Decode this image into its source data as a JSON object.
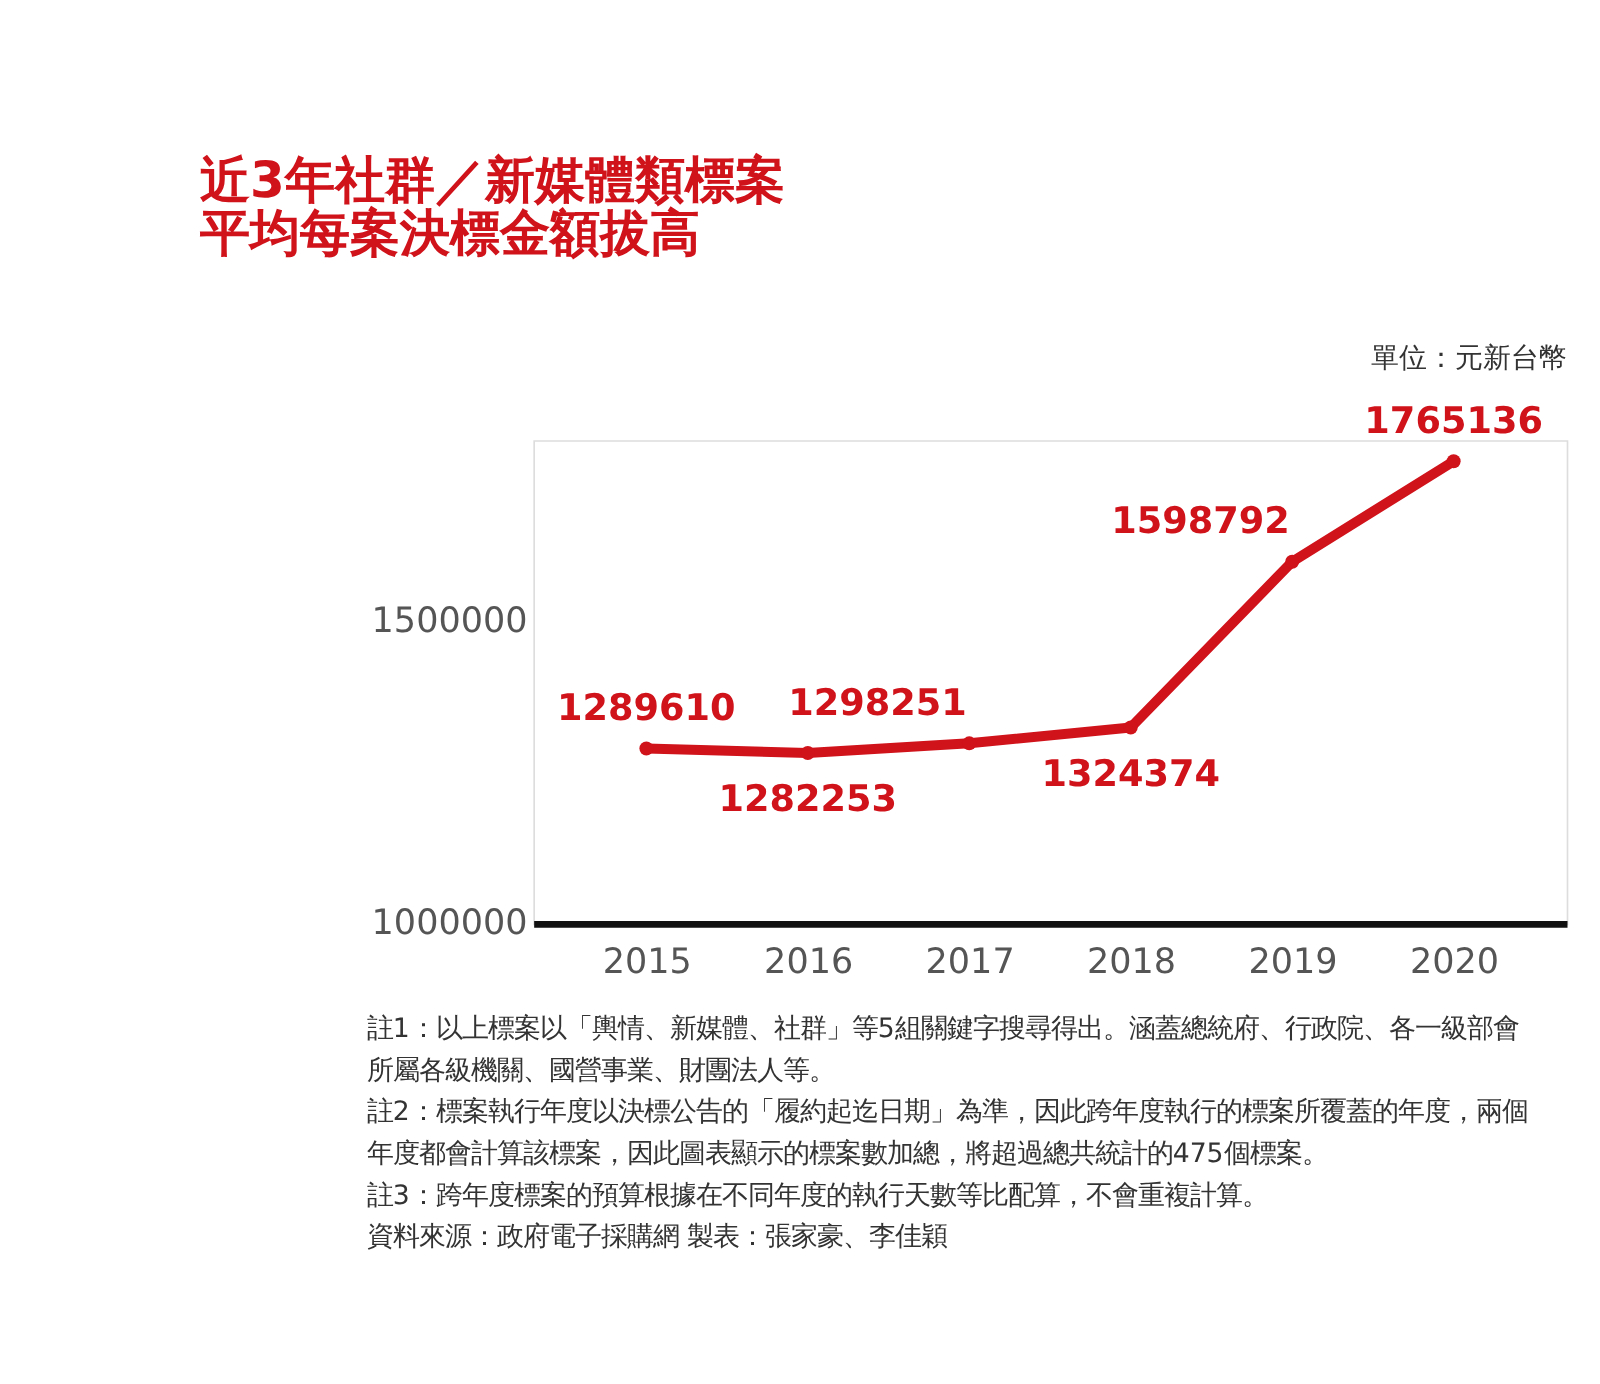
{
  "chart_data": {
    "type": "line",
    "title": [
      "近3年社群／新媒體類標案",
      "平均每案決標金額拔高"
    ],
    "categories": [
      "2015",
      "2016",
      "2017",
      "2018",
      "2019",
      "2020"
    ],
    "series": [
      {
        "color": "#d0121b",
        "values": [
          1289610,
          1282253,
          1298251,
          1324374,
          1598792,
          1765136
        ]
      }
    ],
    "ylim": [
      1000000,
      1800000
    ],
    "yticks": [
      1000000,
      1500000
    ],
    "grid": false,
    "marker": "circle",
    "line_style": "solid",
    "data_labels": true,
    "annotations": [
      "單位：元新台幣",
      "註1：以上標案以「輿情、新媒體、社群」等5組關鍵字搜尋得出。涵蓋總統府、行政院、各一級部會所屬各級機關、國營事業、財團法人等。",
      "註2：標案執行年度以決標公告的「履約起迄日期」為準，因此跨年度執行的標案所覆蓋的年度，兩個年度都會計算該標案，因此圖表顯示的標案數加總，將超過總共統計的475個標案。",
      "註3：跨年度標案的預算根據在不同年度的執行天數等比配算，不會重複計算。",
      "資料來源：政府電子採購網  製表：張家豪、李佳穎"
    ]
  }
}
